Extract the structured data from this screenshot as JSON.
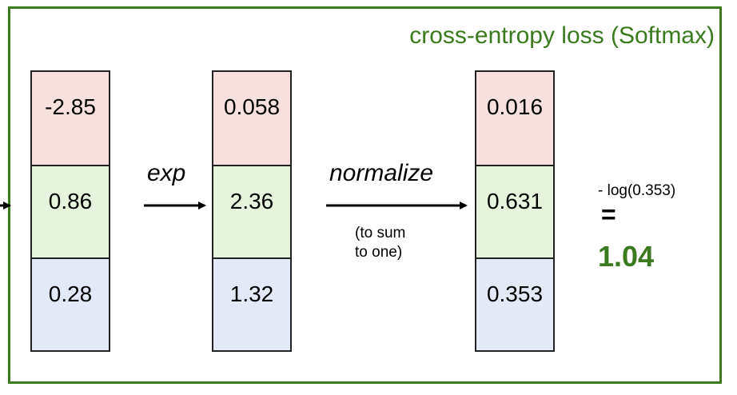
{
  "title": "cross-entropy loss (Softmax)",
  "scores": [
    "-2.85",
    "0.86",
    "0.28"
  ],
  "exp_label": "exp",
  "exp_values": [
    "0.058",
    "2.36",
    "1.32"
  ],
  "normalize_label": "normalize",
  "normalize_note_line1": "(to sum",
  "normalize_note_line2": "to one)",
  "probabilities": [
    "0.016",
    "0.631",
    "0.353"
  ],
  "loss_expression": "- log(0.353)",
  "equals_sign": "=",
  "loss_value": "1.04",
  "colors": {
    "frame": "#3b7a1e",
    "row1": "#f7e0dd",
    "row2": "#e6f4de",
    "row3": "#e3e9f7"
  }
}
